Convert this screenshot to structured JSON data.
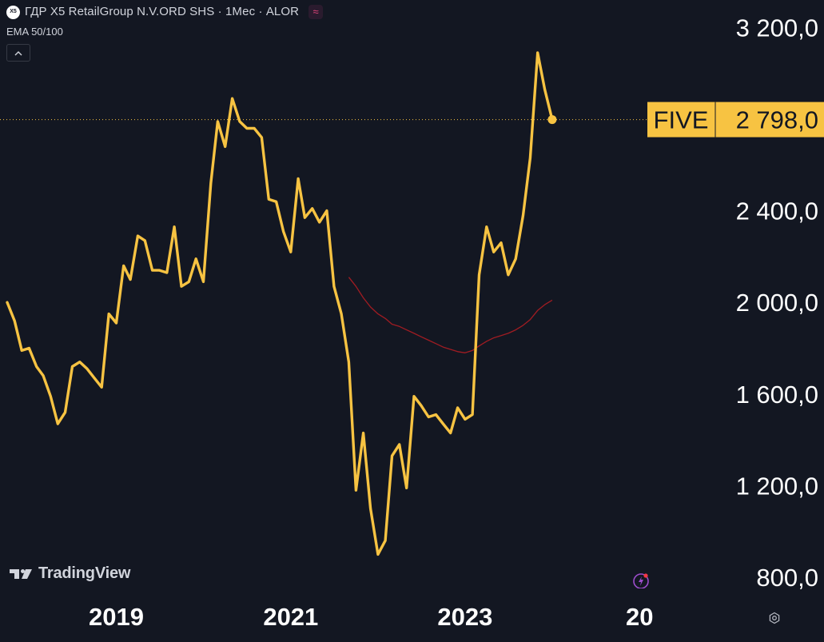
{
  "legend": {
    "logo_text": "X5",
    "title": "ГДР X5 RetailGroup N.V.ORD SHS · 1Мес · ALOR",
    "badge": "≈",
    "indicator": "EMA 50/100",
    "collapse_icon": "chevron-up-icon"
  },
  "branding": {
    "name": "TradingView"
  },
  "price_label": {
    "symbol": "FIVE",
    "value": "2 798,0"
  },
  "colors": {
    "background": "#131722",
    "price_line": "#f7c342",
    "ema_line": "#a01c22",
    "axis_text": "#ffffff",
    "label_bg": "#f7c342",
    "label_text": "#131722"
  },
  "chart_data": {
    "type": "line",
    "title": "",
    "xlabel": "",
    "ylabel": "",
    "ylim": [
      720,
      3320
    ],
    "xlim": [
      "2017-09-01",
      "2025-12-01"
    ],
    "y_ticks": [
      {
        "value": 800,
        "label": "800,0"
      },
      {
        "value": 1200,
        "label": "1 200,0"
      },
      {
        "value": 1600,
        "label": "1 600,0"
      },
      {
        "value": 2000,
        "label": "2 000,0"
      },
      {
        "value": 2400,
        "label": "2 400,0"
      },
      {
        "value": 3200,
        "label": "3 200,0"
      }
    ],
    "x_ticks": [
      {
        "value": "2019-01-01",
        "label": "2019"
      },
      {
        "value": "2021-01-01",
        "label": "2021"
      },
      {
        "value": "2023-01-01",
        "label": "2023"
      },
      {
        "value": "2025-01-01",
        "label": "20"
      }
    ],
    "series": [
      {
        "values": [
          [
            "2017-10-01",
            2000
          ],
          [
            "2017-11-01",
            1920
          ],
          [
            "2017-12-01",
            1790
          ],
          [
            "2018-01-01",
            1800
          ],
          [
            "2018-02-01",
            1720
          ],
          [
            "2018-03-01",
            1680
          ],
          [
            "2018-04-01",
            1590
          ],
          [
            "2018-05-01",
            1470
          ],
          [
            "2018-06-01",
            1520
          ],
          [
            "2018-07-01",
            1720
          ],
          [
            "2018-08-01",
            1740
          ],
          [
            "2018-09-01",
            1710
          ],
          [
            "2018-10-01",
            1670
          ],
          [
            "2018-11-01",
            1630
          ],
          [
            "2018-12-01",
            1950
          ],
          [
            "2019-01-01",
            1910
          ],
          [
            "2019-02-01",
            2160
          ],
          [
            "2019-03-01",
            2100
          ],
          [
            "2019-04-01",
            2290
          ],
          [
            "2019-05-01",
            2270
          ],
          [
            "2019-06-01",
            2140
          ],
          [
            "2019-07-01",
            2140
          ],
          [
            "2019-08-01",
            2130
          ],
          [
            "2019-09-01",
            2330
          ],
          [
            "2019-10-01",
            2070
          ],
          [
            "2019-11-01",
            2090
          ],
          [
            "2019-12-01",
            2190
          ],
          [
            "2020-01-01",
            2090
          ],
          [
            "2020-02-01",
            2520
          ],
          [
            "2020-03-01",
            2790
          ],
          [
            "2020-04-01",
            2680
          ],
          [
            "2020-05-01",
            2890
          ],
          [
            "2020-06-01",
            2790
          ],
          [
            "2020-07-01",
            2760
          ],
          [
            "2020-08-01",
            2760
          ],
          [
            "2020-09-01",
            2720
          ],
          [
            "2020-10-01",
            2450
          ],
          [
            "2020-11-01",
            2440
          ],
          [
            "2020-12-01",
            2310
          ],
          [
            "2021-01-01",
            2220
          ],
          [
            "2021-02-01",
            2540
          ],
          [
            "2021-03-01",
            2370
          ],
          [
            "2021-04-01",
            2410
          ],
          [
            "2021-05-01",
            2350
          ],
          [
            "2021-06-01",
            2400
          ],
          [
            "2021-07-01",
            2070
          ],
          [
            "2021-08-01",
            1950
          ],
          [
            "2021-09-01",
            1740
          ],
          [
            "2021-10-01",
            1180
          ],
          [
            "2021-11-01",
            1430
          ],
          [
            "2021-12-01",
            1100
          ],
          [
            "2022-01-01",
            900
          ],
          [
            "2022-02-01",
            960
          ],
          [
            "2022-03-01",
            1330
          ],
          [
            "2022-04-01",
            1380
          ],
          [
            "2022-05-01",
            1190
          ],
          [
            "2022-06-01",
            1590
          ],
          [
            "2022-07-01",
            1550
          ],
          [
            "2022-08-01",
            1500
          ],
          [
            "2022-09-01",
            1510
          ],
          [
            "2022-10-01",
            1470
          ],
          [
            "2022-11-01",
            1430
          ],
          [
            "2022-12-01",
            1540
          ],
          [
            "2023-01-01",
            1490
          ],
          [
            "2023-02-01",
            1510
          ],
          [
            "2023-03-01",
            2120
          ],
          [
            "2023-04-01",
            2330
          ],
          [
            "2023-05-01",
            2220
          ],
          [
            "2023-06-01",
            2260
          ],
          [
            "2023-07-01",
            2120
          ],
          [
            "2023-08-01",
            2190
          ],
          [
            "2023-09-01",
            2380
          ],
          [
            "2023-10-01",
            2630
          ],
          [
            "2023-11-01",
            3090
          ],
          [
            "2023-12-01",
            2930
          ],
          [
            "2024-01-01",
            2798
          ]
        ]
      },
      {
        "values": [
          [
            "2021-09-01",
            2110
          ],
          [
            "2021-10-01",
            2070
          ],
          [
            "2021-11-01",
            2020
          ],
          [
            "2021-12-01",
            1980
          ],
          [
            "2022-01-01",
            1950
          ],
          [
            "2022-02-01",
            1930
          ],
          [
            "2022-03-01",
            1905
          ],
          [
            "2022-04-01",
            1895
          ],
          [
            "2022-05-01",
            1880
          ],
          [
            "2022-06-01",
            1865
          ],
          [
            "2022-07-01",
            1850
          ],
          [
            "2022-08-01",
            1835
          ],
          [
            "2022-09-01",
            1820
          ],
          [
            "2022-10-01",
            1805
          ],
          [
            "2022-11-01",
            1795
          ],
          [
            "2022-12-01",
            1785
          ],
          [
            "2023-01-01",
            1780
          ],
          [
            "2023-02-01",
            1790
          ],
          [
            "2023-03-01",
            1810
          ],
          [
            "2023-04-01",
            1830
          ],
          [
            "2023-05-01",
            1845
          ],
          [
            "2023-06-01",
            1855
          ],
          [
            "2023-07-01",
            1865
          ],
          [
            "2023-08-01",
            1880
          ],
          [
            "2023-09-01",
            1900
          ],
          [
            "2023-10-01",
            1925
          ],
          [
            "2023-11-01",
            1965
          ],
          [
            "2023-12-01",
            1990
          ],
          [
            "2024-01-01",
            2010
          ]
        ]
      }
    ]
  }
}
